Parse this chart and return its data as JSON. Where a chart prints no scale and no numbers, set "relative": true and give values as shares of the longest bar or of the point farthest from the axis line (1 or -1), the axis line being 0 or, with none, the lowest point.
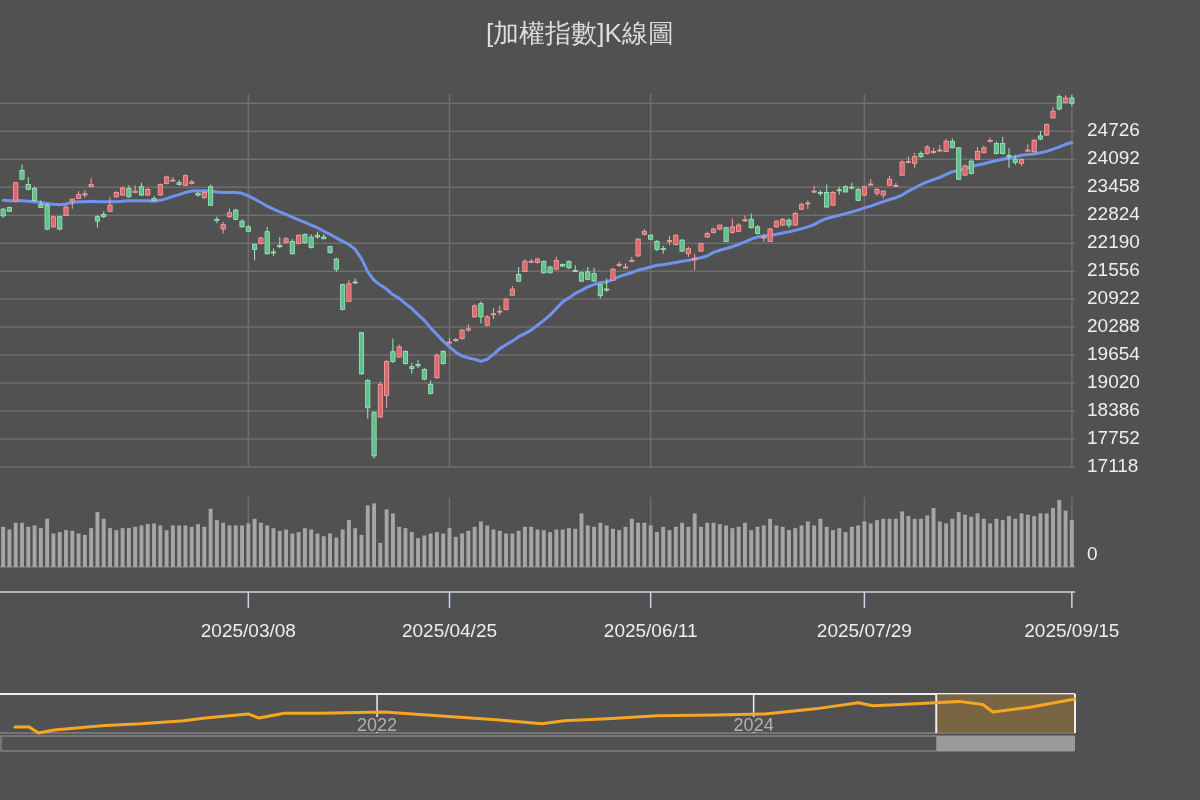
{
  "chart_data": [
    {
      "type": "candlestick",
      "title": "[加權指數]K線圖",
      "categories": [
        null,
        null,
        null,
        null,
        null,
        null,
        null,
        null,
        null,
        null,
        null,
        null,
        null,
        null,
        null,
        null,
        null,
        null,
        null,
        null,
        null,
        null,
        null,
        null,
        null,
        null,
        null,
        null,
        null,
        null,
        null,
        null,
        null,
        null,
        null,
        null,
        null,
        null,
        null,
        "2025/03/08",
        null,
        null,
        null,
        null,
        null,
        null,
        null,
        null,
        null,
        null,
        null,
        null,
        null,
        null,
        null,
        null,
        null,
        null,
        null,
        null,
        null,
        null,
        null,
        null,
        null,
        null,
        null,
        null,
        null,
        null,
        null,
        "2025/04/25",
        null,
        null,
        null,
        null,
        null,
        null,
        null,
        null,
        null,
        null,
        null,
        null,
        null,
        null,
        null,
        null,
        null,
        null,
        null,
        null,
        null,
        null,
        null,
        null,
        null,
        null,
        null,
        null,
        null,
        null,
        null,
        "2025/06/11",
        null,
        null,
        null,
        null,
        null,
        null,
        null,
        null,
        null,
        null,
        null,
        null,
        null,
        null,
        null,
        null,
        null,
        null,
        null,
        null,
        null,
        null,
        null,
        null,
        null,
        null,
        null,
        null,
        null,
        null,
        null,
        null,
        null,
        "2025/07/29",
        null,
        null,
        null,
        null,
        null,
        null,
        null,
        null,
        null,
        null,
        null,
        null,
        null,
        null,
        null,
        null,
        null,
        null,
        null,
        null,
        null,
        null,
        null,
        null,
        null,
        null,
        null,
        null,
        null,
        null,
        null,
        null,
        "2025/09/15"
      ],
      "ohlc": [
        [
          22960,
          22990,
          22760,
          22810
        ],
        [
          23000,
          23020,
          22900,
          22910
        ],
        [
          23140,
          23580,
          23130,
          23560
        ],
        [
          23840,
          23970,
          23620,
          23640
        ],
        [
          23520,
          23690,
          23390,
          23410
        ],
        [
          23430,
          23470,
          23140,
          23160
        ],
        [
          23070,
          23160,
          22990,
          23000
        ],
        [
          23050,
          23090,
          22480,
          22510
        ],
        [
          22560,
          22810,
          22540,
          22790
        ],
        [
          22790,
          22810,
          22480,
          22510
        ],
        [
          22820,
          23050,
          22810,
          23010
        ],
        [
          23140,
          23200,
          22970,
          23190
        ],
        [
          23200,
          23370,
          23190,
          23290
        ],
        [
          23280,
          23390,
          23220,
          23310
        ],
        [
          23470,
          23660,
          23460,
          23520
        ],
        [
          22790,
          22820,
          22540,
          22690
        ],
        [
          22840,
          22910,
          22760,
          22790
        ],
        [
          22910,
          23240,
          22900,
          23050
        ],
        [
          23240,
          23370,
          23220,
          23340
        ],
        [
          23280,
          23470,
          23260,
          23440
        ],
        [
          23430,
          23500,
          23220,
          23240
        ],
        [
          23340,
          23500,
          23320,
          23370
        ],
        [
          23470,
          23560,
          23260,
          23280
        ],
        [
          23280,
          23440,
          23260,
          23410
        ],
        [
          23200,
          23260,
          23140,
          23160
        ],
        [
          23280,
          23540,
          23260,
          23520
        ],
        [
          23540,
          23720,
          23520,
          23690
        ],
        [
          23600,
          23690,
          23580,
          23620
        ],
        [
          23560,
          23620,
          23500,
          23520
        ],
        [
          23500,
          23750,
          23490,
          23720
        ],
        [
          23540,
          23620,
          23520,
          23580
        ],
        [
          23320,
          23350,
          23240,
          23280
        ],
        [
          23220,
          23370,
          23190,
          23340
        ],
        [
          23470,
          23520,
          23040,
          23050
        ],
        [
          22730,
          22790,
          22640,
          22710
        ],
        [
          22510,
          22670,
          22410,
          22610
        ],
        [
          22790,
          22970,
          22760,
          22880
        ],
        [
          22940,
          22970,
          22710,
          22730
        ],
        [
          22690,
          22730,
          22540,
          22560
        ],
        [
          22560,
          22600,
          22450,
          22460
        ],
        [
          22160,
          22180,
          21800,
          22050
        ],
        [
          22180,
          22330,
          22160,
          22310
        ],
        [
          22450,
          22560,
          21930,
          21950
        ],
        [
          21990,
          22070,
          21900,
          21970
        ],
        [
          22140,
          22330,
          22080,
          22110
        ],
        [
          22200,
          22330,
          22180,
          22290
        ],
        [
          22230,
          22280,
          21930,
          21950
        ],
        [
          22180,
          22390,
          22160,
          22370
        ],
        [
          22390,
          22410,
          22180,
          22200
        ],
        [
          22330,
          22390,
          22070,
          22090
        ],
        [
          22370,
          22450,
          22290,
          22330
        ],
        [
          22330,
          22390,
          22280,
          22290
        ],
        [
          22110,
          22130,
          21950,
          21980
        ],
        [
          21830,
          21860,
          21540,
          21600
        ],
        [
          21250,
          21270,
          20670,
          20690
        ],
        [
          20870,
          21350,
          20860,
          21270
        ],
        [
          21310,
          21390,
          21270,
          21300
        ],
        [
          20160,
          20180,
          19210,
          19230
        ],
        [
          19080,
          19110,
          18210,
          18460
        ],
        [
          18350,
          18380,
          17310,
          17370
        ],
        [
          18250,
          19050,
          18230,
          18990
        ],
        [
          18740,
          19540,
          18460,
          19510
        ],
        [
          19730,
          20030,
          19480,
          19510
        ],
        [
          19610,
          19890,
          19590,
          19840
        ],
        [
          19740,
          19760,
          19440,
          19460
        ],
        [
          19390,
          19480,
          19230,
          19350
        ],
        [
          19440,
          19540,
          19360,
          19410
        ],
        [
          19330,
          19360,
          19080,
          19110
        ],
        [
          18990,
          19080,
          18760,
          18780
        ],
        [
          19140,
          19690,
          19120,
          19650
        ],
        [
          19740,
          19760,
          19440,
          19460
        ],
        [
          19940,
          20040,
          19890,
          19950
        ],
        [
          19980,
          20040,
          19950,
          20010
        ],
        [
          20030,
          20250,
          20010,
          20220
        ],
        [
          20220,
          20350,
          20180,
          20250
        ],
        [
          20520,
          20800,
          20500,
          20770
        ],
        [
          20820,
          20870,
          20370,
          20520
        ],
        [
          20330,
          20560,
          20310,
          20520
        ],
        [
          20570,
          20720,
          20470,
          20590
        ],
        [
          20630,
          20770,
          20560,
          20650
        ],
        [
          20690,
          20950,
          20670,
          20920
        ],
        [
          21010,
          21220,
          21000,
          21150
        ],
        [
          21480,
          21650,
          21310,
          21330
        ],
        [
          21550,
          21830,
          21540,
          21780
        ],
        [
          21770,
          21830,
          21740,
          21780
        ],
        [
          21750,
          21860,
          21730,
          21830
        ],
        [
          21780,
          21800,
          21500,
          21520
        ],
        [
          21650,
          21680,
          21500,
          21520
        ],
        [
          21600,
          21880,
          21580,
          21800
        ],
        [
          21710,
          21730,
          21650,
          21670
        ],
        [
          21780,
          21800,
          21600,
          21630
        ],
        [
          21570,
          21690,
          21540,
          21550
        ],
        [
          21520,
          21550,
          21310,
          21330
        ],
        [
          21540,
          21650,
          21350,
          21370
        ],
        [
          21500,
          21630,
          21310,
          21330
        ],
        [
          21250,
          21270,
          20940,
          21000
        ],
        [
          21150,
          21390,
          21090,
          21130
        ],
        [
          21350,
          21630,
          21330,
          21600
        ],
        [
          21690,
          21770,
          21650,
          21710
        ],
        [
          21640,
          21730,
          21610,
          21650
        ],
        [
          21790,
          21880,
          21770,
          21800
        ],
        [
          21900,
          22310,
          21880,
          22280
        ],
        [
          22390,
          22510,
          22360,
          22460
        ],
        [
          22370,
          22390,
          22260,
          22280
        ],
        [
          22230,
          22260,
          22010,
          22050
        ],
        [
          22070,
          22130,
          21950,
          22050
        ],
        [
          22230,
          22360,
          22140,
          22250
        ],
        [
          22160,
          22390,
          22140,
          22370
        ],
        [
          22260,
          22280,
          21990,
          22010
        ],
        [
          21950,
          22110,
          21880,
          22070
        ],
        [
          21830,
          21950,
          21580,
          21840
        ],
        [
          22010,
          22200,
          21990,
          22180
        ],
        [
          22330,
          22450,
          22310,
          22410
        ],
        [
          22430,
          22540,
          22410,
          22510
        ],
        [
          22510,
          22610,
          22480,
          22600
        ],
        [
          22540,
          22560,
          22220,
          22230
        ],
        [
          22430,
          22750,
          22410,
          22560
        ],
        [
          22460,
          22640,
          22450,
          22600
        ],
        [
          22700,
          22820,
          22670,
          22720
        ],
        [
          22730,
          22860,
          22520,
          22540
        ],
        [
          22560,
          22600,
          22390,
          22410
        ],
        [
          22310,
          22390,
          22220,
          22330
        ],
        [
          22230,
          22540,
          22220,
          22510
        ],
        [
          22560,
          22710,
          22540,
          22690
        ],
        [
          22600,
          22760,
          22580,
          22730
        ],
        [
          22710,
          22760,
          22540,
          22600
        ],
        [
          22600,
          22900,
          22580,
          22860
        ],
        [
          22960,
          23110,
          22940,
          23070
        ],
        [
          23080,
          23160,
          22960,
          23100
        ],
        [
          23350,
          23490,
          23320,
          23370
        ],
        [
          23340,
          23390,
          23260,
          23320
        ],
        [
          23340,
          23520,
          22990,
          23010
        ],
        [
          23050,
          23370,
          23040,
          23340
        ],
        [
          23400,
          23470,
          23290,
          23380
        ],
        [
          23470,
          23500,
          23340,
          23350
        ],
        [
          23460,
          23560,
          23410,
          23440
        ],
        [
          23410,
          23440,
          23140,
          23160
        ],
        [
          23280,
          23490,
          23260,
          23470
        ],
        [
          23520,
          23640,
          23490,
          23530
        ],
        [
          23320,
          23440,
          23260,
          23410
        ],
        [
          23280,
          23390,
          23200,
          23370
        ],
        [
          23500,
          23720,
          23490,
          23640
        ],
        [
          23490,
          23560,
          23470,
          23500
        ],
        [
          23730,
          24070,
          23720,
          24030
        ],
        [
          24030,
          24150,
          24000,
          24040
        ],
        [
          24000,
          24240,
          23900,
          24150
        ],
        [
          24220,
          24270,
          24120,
          24150
        ],
        [
          24220,
          24410,
          24200,
          24370
        ],
        [
          24260,
          24350,
          24220,
          24270
        ],
        [
          24290,
          24410,
          24260,
          24300
        ],
        [
          24270,
          24550,
          24260,
          24500
        ],
        [
          24500,
          24560,
          24340,
          24350
        ],
        [
          24350,
          24370,
          23620,
          23640
        ],
        [
          23730,
          23970,
          23720,
          23940
        ],
        [
          24050,
          24090,
          23750,
          23770
        ],
        [
          24090,
          24370,
          24070,
          24270
        ],
        [
          24240,
          24400,
          24220,
          24350
        ],
        [
          24500,
          24580,
          24470,
          24520
        ],
        [
          24450,
          24490,
          24200,
          24220
        ],
        [
          24450,
          24600,
          24200,
          24220
        ],
        [
          24180,
          24340,
          23900,
          24170
        ],
        [
          24090,
          24180,
          23960,
          24020
        ],
        [
          24000,
          24110,
          23940,
          24090
        ],
        [
          24280,
          24430,
          24260,
          24300
        ],
        [
          24260,
          24550,
          24240,
          24520
        ],
        [
          24620,
          24730,
          24520,
          24550
        ],
        [
          24640,
          24900,
          24620,
          24880
        ],
        [
          25030,
          25280,
          25020,
          25180
        ],
        [
          25510,
          25560,
          25200,
          25230
        ],
        [
          25380,
          25540,
          25360,
          25480
        ],
        [
          25480,
          25560,
          25300,
          25360
        ]
      ],
      "series": [
        {
          "type": "line",
          "color": "#6f93ef",
          "values": [
            23160,
            23150,
            23150,
            23150,
            23140,
            23130,
            23110,
            23090,
            23070,
            23060,
            23080,
            23110,
            23130,
            23130,
            23140,
            23130,
            23130,
            23130,
            23130,
            23140,
            23150,
            23150,
            23150,
            23150,
            23140,
            23160,
            23200,
            23250,
            23290,
            23340,
            23370,
            23380,
            23380,
            23370,
            23350,
            23340,
            23340,
            23340,
            23320,
            23260,
            23190,
            23110,
            23030,
            22960,
            22900,
            22840,
            22780,
            22720,
            22660,
            22600,
            22540,
            22460,
            22390,
            22310,
            22230,
            22160,
            22050,
            21840,
            21540,
            21350,
            21240,
            21150,
            21020,
            20940,
            20820,
            20710,
            20570,
            20440,
            20270,
            20120,
            19970,
            19840,
            19720,
            19630,
            19590,
            19560,
            19510,
            19560,
            19670,
            19800,
            19890,
            19970,
            20070,
            20140,
            20220,
            20330,
            20440,
            20560,
            20710,
            20860,
            20950,
            21050,
            21120,
            21200,
            21250,
            21300,
            21310,
            21370,
            21430,
            21480,
            21520,
            21580,
            21610,
            21650,
            21690,
            21700,
            21730,
            21750,
            21780,
            21800,
            21830,
            21860,
            21900,
            21980,
            22030,
            22070,
            22110,
            22160,
            22220,
            22280,
            22330,
            22350,
            22370,
            22390,
            22420,
            22450,
            22480,
            22520,
            22560,
            22610,
            22690,
            22750,
            22790,
            22820,
            22860,
            22900,
            22940,
            22990,
            23030,
            23080,
            23130,
            23180,
            23220,
            23280,
            23370,
            23440,
            23520,
            23580,
            23630,
            23680,
            23750,
            23810,
            23840,
            23880,
            23920,
            23960,
            23990,
            24030,
            24060,
            24090,
            24120,
            24150,
            24180,
            24200,
            24210,
            24240,
            24270,
            24320,
            24370,
            24430,
            24470
          ]
        }
      ],
      "ylim": [
        17118,
        25570
      ],
      "yticks": [
        {
          "value": 25360,
          "label": null
        },
        24726,
        24092,
        23458,
        22824,
        22190,
        21556,
        20922,
        20288,
        19654,
        19020,
        18386,
        17752,
        17118
      ],
      "grid": true,
      "tick_labels": "y"
    },
    {
      "type": "bar",
      "relative": true,
      "color": "#a6a6a6",
      "categories": [
        null,
        null,
        null,
        null,
        null,
        null,
        null,
        null,
        null,
        null,
        null,
        null,
        null,
        null,
        null,
        null,
        null,
        null,
        null,
        null,
        null,
        null,
        null,
        null,
        null,
        null,
        null,
        null,
        null,
        null,
        null,
        null,
        null,
        null,
        null,
        null,
        null,
        null,
        null,
        "2025/03/08",
        null,
        null,
        null,
        null,
        null,
        null,
        null,
        null,
        null,
        null,
        null,
        null,
        null,
        null,
        null,
        null,
        null,
        null,
        null,
        null,
        null,
        null,
        null,
        null,
        null,
        null,
        null,
        null,
        null,
        null,
        null,
        "2025/04/25",
        null,
        null,
        null,
        null,
        null,
        null,
        null,
        null,
        null,
        null,
        null,
        null,
        null,
        null,
        null,
        null,
        null,
        null,
        null,
        null,
        null,
        null,
        null,
        null,
        null,
        null,
        null,
        null,
        null,
        null,
        null,
        "2025/06/11",
        null,
        null,
        null,
        null,
        null,
        null,
        null,
        null,
        null,
        null,
        null,
        null,
        null,
        null,
        null,
        null,
        null,
        null,
        null,
        null,
        null,
        null,
        null,
        null,
        null,
        null,
        null,
        null,
        null,
        null,
        null,
        null,
        null,
        "2025/07/29",
        null,
        null,
        null,
        null,
        null,
        null,
        null,
        null,
        null,
        null,
        null,
        null,
        null,
        null,
        null,
        null,
        null,
        null,
        null,
        null,
        null,
        null,
        null,
        null,
        null,
        null,
        null,
        null,
        null,
        null,
        null,
        null,
        "2025/09/15"
      ],
      "values": [
        0.6,
        0.56,
        0.66,
        0.66,
        0.6,
        0.62,
        0.58,
        0.72,
        0.5,
        0.52,
        0.55,
        0.54,
        0.5,
        0.48,
        0.58,
        0.82,
        0.72,
        0.58,
        0.55,
        0.58,
        0.58,
        0.6,
        0.62,
        0.64,
        0.65,
        0.62,
        0.55,
        0.62,
        0.62,
        0.62,
        0.6,
        0.64,
        0.6,
        0.87,
        0.7,
        0.66,
        0.62,
        0.62,
        0.62,
        0.65,
        0.72,
        0.66,
        0.62,
        0.58,
        0.54,
        0.56,
        0.5,
        0.52,
        0.58,
        0.56,
        0.5,
        0.46,
        0.5,
        0.44,
        0.56,
        0.7,
        0.58,
        0.48,
        0.92,
        0.95,
        0.36,
        0.86,
        0.8,
        0.6,
        0.58,
        0.52,
        0.43,
        0.47,
        0.5,
        0.52,
        0.5,
        0.58,
        0.45,
        0.5,
        0.54,
        0.6,
        0.68,
        0.62,
        0.56,
        0.54,
        0.5,
        0.5,
        0.54,
        0.6,
        0.6,
        0.56,
        0.55,
        0.52,
        0.56,
        0.56,
        0.58,
        0.57,
        0.8,
        0.62,
        0.6,
        0.66,
        0.62,
        0.57,
        0.55,
        0.6,
        0.72,
        0.66,
        0.66,
        0.62,
        0.52,
        0.6,
        0.55,
        0.6,
        0.66,
        0.6,
        0.8,
        0.6,
        0.66,
        0.66,
        0.64,
        0.62,
        0.58,
        0.6,
        0.66,
        0.55,
        0.6,
        0.62,
        0.72,
        0.62,
        0.6,
        0.55,
        0.58,
        0.62,
        0.68,
        0.62,
        0.72,
        0.6,
        0.55,
        0.58,
        0.52,
        0.6,
        0.62,
        0.68,
        0.65,
        0.7,
        0.72,
        0.72,
        0.72,
        0.83,
        0.76,
        0.72,
        0.72,
        0.77,
        0.88,
        0.68,
        0.65,
        0.72,
        0.82,
        0.78,
        0.75,
        0.8,
        0.72,
        0.65,
        0.72,
        0.7,
        0.76,
        0.72,
        0.8,
        0.78,
        0.76,
        0.8,
        0.8,
        0.88,
        1.0,
        0.84,
        0.7
      ],
      "annotations": [
        "0"
      ],
      "grid": "x"
    },
    {
      "type": "line",
      "relative": true,
      "color": "#f5a623",
      "x": [
        "2020-01-30",
        "2020-02-26",
        "2020-03-16",
        "2020-04-15",
        "2020-07-22",
        "2020-09-30",
        "2020-12-22",
        "2021-02-02",
        "2021-04-26",
        "2021-05-17",
        "2021-07-05",
        "2021-09-13",
        "2022-01-15",
        "2022-04-08",
        "2022-07-01",
        "2022-08-26",
        "2022-11-17",
        "2022-12-29",
        "2023-03-24",
        "2023-06-28",
        "2023-10-17",
        "2024-01-23",
        "2024-04-30",
        "2024-07-22",
        "2024-08-19",
        "2024-10-13",
        "2025-02-02",
        "2025-03-20",
        "2025-04-09",
        "2025-06-20",
        "2025-09-15"
      ],
      "values": [
        0.18,
        0.18,
        0,
        0.09,
        0.22,
        0.27,
        0.36,
        0.44,
        0.56,
        0.44,
        0.58,
        0.58,
        0.62,
        0.53,
        0.44,
        0.38,
        0.27,
        0.36,
        0.42,
        0.51,
        0.53,
        0.56,
        0.71,
        0.89,
        0.8,
        0.84,
        0.93,
        0.84,
        0.62,
        0.76,
        1
      ],
      "xlim": [
        "2020-01-01",
        "2025-09-15"
      ],
      "xticks": [
        {
          "value": "2022-01-01",
          "label": "2022"
        },
        {
          "value": "2024-01-01",
          "label": "2024"
        }
      ],
      "bands": [
        {
          "axis": "x",
          "from": "2024-12-20",
          "to": "2025-09-15",
          "color": "#8a6d3b"
        }
      ],
      "ref_lines": [
        {
          "axis": "x",
          "value": "2024-12-20",
          "color": "#eeeeee"
        },
        {
          "axis": "x",
          "value": "2025-09-15",
          "color": "#eeeeee"
        }
      ],
      "grid": "x",
      "tick_labels": "x"
    }
  ]
}
